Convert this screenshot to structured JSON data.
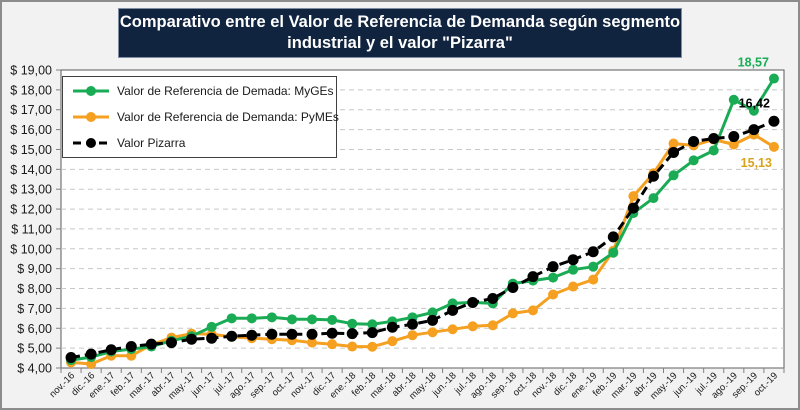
{
  "title": {
    "line1": "Comparativo entre el Valor de Referencia de Demanda según segmento",
    "line2": "industrial y el valor \"Pizarra\""
  },
  "legend": {
    "items": [
      {
        "label": "Valor de Referencia de Demada: MyGEs",
        "color": "#1aab55",
        "style": "solid"
      },
      {
        "label": "Valor de Referencia de Demanda: PyMEs",
        "color": "#f5a020",
        "style": "solid"
      },
      {
        "label": "Valor Pizarra",
        "color": "#000000",
        "style": "dashed"
      }
    ]
  },
  "chart_data": {
    "type": "line",
    "title": "Comparativo entre el Valor de Referencia de Demanda según segmento industrial y el valor \"Pizarra\"",
    "xlabel": "",
    "ylabel": "",
    "ylim": [
      4,
      19
    ],
    "yticks": [
      4,
      5,
      6,
      7,
      8,
      9,
      10,
      11,
      12,
      13,
      14,
      15,
      16,
      17,
      18,
      19
    ],
    "ytick_labels": [
      "$ 4,00",
      "$ 5,00",
      "$ 6,00",
      "$ 7,00",
      "$ 8,00",
      "$ 9,00",
      "$ 10,00",
      "$ 11,00",
      "$ 12,00",
      "$ 13,00",
      "$ 14,00",
      "$ 15,00",
      "$ 16,00",
      "$ 17,00",
      "$ 18,00",
      "$ 19,00"
    ],
    "grid": true,
    "legend_position": "top-left",
    "categories": [
      "nov.-16",
      "dic.-16",
      "ene.-17",
      "feb.-17",
      "mar.-17",
      "abr.-17",
      "may.-17",
      "jun.-17",
      "jul.-17",
      "ago.-17",
      "sep.-17",
      "oct.-17",
      "nov.-17",
      "dic.-17",
      "ene.-18",
      "feb.-18",
      "mar.-18",
      "abr.-18",
      "may.-18",
      "jun.-18",
      "jul.-18",
      "ago.-18",
      "sep.-18",
      "oct.-18",
      "nov.-18",
      "dic.-18",
      "ene.-19",
      "feb.-19",
      "mar.-19",
      "abr.-19",
      "may.-19",
      "jun.-19",
      "jul.-19",
      "ago.-19",
      "sep.-19",
      "oct.-19"
    ],
    "series": [
      {
        "name": "Valor de Referencia de Demada: MyGEs",
        "color": "#1aab55",
        "style": "solid",
        "values": [
          4.4,
          4.55,
          4.83,
          4.95,
          5.08,
          5.37,
          5.6,
          6.07,
          6.5,
          6.5,
          6.55,
          6.45,
          6.45,
          6.42,
          6.23,
          6.2,
          6.35,
          6.55,
          6.8,
          7.25,
          7.3,
          7.25,
          8.25,
          8.4,
          8.55,
          8.95,
          9.1,
          9.8,
          11.8,
          12.55,
          13.7,
          14.45,
          14.95,
          17.5,
          16.95,
          18.57
        ],
        "end_label": "18,57",
        "end_label_color": "#1aab55"
      },
      {
        "name": "Valor de Referencia de Demanda: PyMEs",
        "color": "#f5a020",
        "style": "solid",
        "values": [
          4.28,
          4.2,
          4.62,
          4.62,
          5.17,
          5.53,
          5.73,
          5.7,
          5.57,
          5.5,
          5.45,
          5.4,
          5.28,
          5.2,
          5.08,
          5.07,
          5.35,
          5.65,
          5.8,
          5.95,
          6.1,
          6.15,
          6.75,
          6.9,
          7.7,
          8.1,
          8.45,
          9.9,
          12.65,
          13.8,
          15.3,
          15.2,
          15.5,
          15.25,
          15.75,
          15.13
        ],
        "end_label": "15,13",
        "end_label_color": "#d9a21c"
      },
      {
        "name": "Valor Pizarra",
        "color": "#000000",
        "style": "dashed",
        "values": [
          4.53,
          4.7,
          4.92,
          5.08,
          5.2,
          5.28,
          5.45,
          5.5,
          5.6,
          5.65,
          5.7,
          5.7,
          5.7,
          5.75,
          5.73,
          5.78,
          6.05,
          6.2,
          6.4,
          6.9,
          7.3,
          7.5,
          8.05,
          8.6,
          9.1,
          9.45,
          9.85,
          10.6,
          12.05,
          13.65,
          14.85,
          15.4,
          15.55,
          15.65,
          16.0,
          16.42
        ],
        "end_label": "16,42",
        "end_label_color": "#000000"
      }
    ]
  }
}
